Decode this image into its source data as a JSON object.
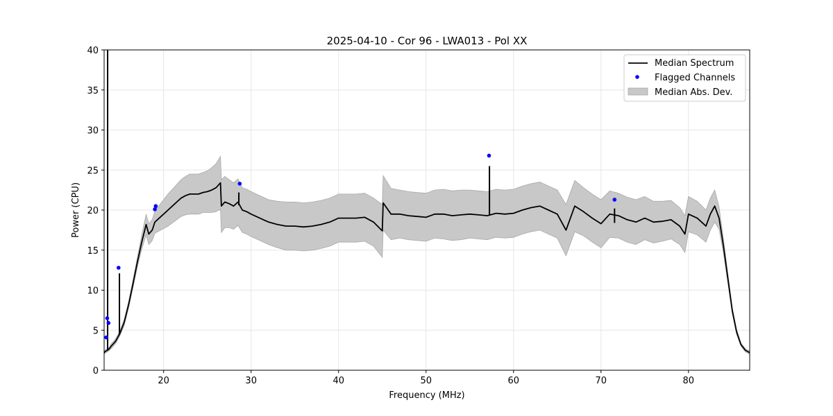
{
  "chart_data": {
    "type": "line",
    "title": "2025-04-10 - Cor 96 - LWA013 - Pol XX",
    "xlabel": "Frequency (MHz)",
    "ylabel": "Power (CPU)",
    "xlim": [
      13.2,
      87.0
    ],
    "ylim": [
      0,
      40
    ],
    "xticks": [
      20,
      30,
      40,
      50,
      60,
      70,
      80
    ],
    "yticks": [
      0,
      5,
      10,
      15,
      20,
      25,
      30,
      35,
      40
    ],
    "grid": true,
    "legend_position": "top-right",
    "legend": [
      {
        "label": "Median Spectrum",
        "kind": "line",
        "color": "#000000"
      },
      {
        "label": "Flagged Channels",
        "kind": "point",
        "color": "#0000ff"
      },
      {
        "label": "Median Abs. Dev.",
        "kind": "band",
        "color": "#c8c8c8"
      }
    ],
    "median_spectrum": {
      "color": "#000000",
      "x": [
        13.2,
        13.4,
        13.6,
        13.8,
        14.0,
        14.5,
        15.0,
        15.5,
        16.0,
        16.5,
        17.0,
        17.5,
        18.0,
        18.3,
        18.7,
        19.0,
        19.5,
        20.0,
        20.5,
        21.0,
        21.5,
        22.0,
        22.5,
        23.0,
        23.5,
        24.0,
        24.5,
        25.0,
        25.5,
        26.0,
        26.5,
        26.6,
        27.0,
        27.5,
        28.0,
        28.5,
        29.0,
        29.5,
        30.0,
        31.0,
        32.0,
        33.0,
        34.0,
        35.0,
        36.0,
        37.0,
        38.0,
        39.0,
        40.0,
        41.0,
        42.0,
        43.0,
        44.0,
        45.0,
        45.1,
        46.0,
        47.0,
        48.0,
        49.0,
        50.0,
        51.0,
        52.0,
        53.0,
        54.0,
        55.0,
        56.0,
        57.0,
        58.0,
        59.0,
        60.0,
        61.0,
        62.0,
        63.0,
        64.0,
        65.0,
        66.0,
        67.0,
        68.0,
        69.0,
        70.0,
        71.0,
        72.0,
        73.0,
        74.0,
        75.0,
        76.0,
        77.0,
        78.0,
        79.0,
        79.6,
        80.0,
        81.0,
        82.0,
        82.5,
        83.0,
        83.5,
        84.0,
        84.5,
        85.0,
        85.5,
        86.0,
        86.5,
        87.0
      ],
      "y": [
        2.2,
        2.4,
        2.5,
        2.7,
        3.0,
        3.6,
        4.6,
        6.0,
        8.2,
        10.8,
        13.5,
        16.0,
        18.2,
        17.0,
        17.5,
        18.5,
        19.0,
        19.5,
        20.0,
        20.5,
        21.0,
        21.5,
        21.8,
        22.0,
        22.0,
        22.0,
        22.2,
        22.3,
        22.5,
        22.8,
        23.4,
        20.5,
        21.0,
        20.8,
        20.5,
        21.0,
        20.0,
        19.8,
        19.5,
        19.0,
        18.5,
        18.2,
        18.0,
        18.0,
        17.9,
        18.0,
        18.2,
        18.5,
        19.0,
        19.0,
        19.0,
        19.1,
        18.5,
        17.4,
        20.9,
        19.5,
        19.5,
        19.3,
        19.2,
        19.1,
        19.5,
        19.5,
        19.3,
        19.4,
        19.5,
        19.4,
        19.3,
        19.6,
        19.5,
        19.6,
        20.0,
        20.3,
        20.5,
        20.0,
        19.5,
        17.5,
        20.5,
        19.8,
        19.0,
        18.3,
        19.5,
        19.3,
        18.8,
        18.5,
        19.0,
        18.5,
        18.6,
        18.8,
        18.0,
        17.0,
        19.5,
        19.0,
        18.0,
        19.5,
        20.5,
        19.0,
        15.5,
        11.5,
        7.5,
        4.8,
        3.2,
        2.5,
        2.2
      ],
      "mad": [
        0.2,
        0.2,
        0.2,
        0.2,
        0.3,
        0.3,
        0.3,
        0.4,
        0.4,
        0.5,
        0.6,
        0.9,
        1.3,
        1.3,
        1.3,
        1.4,
        1.6,
        1.8,
        2.0,
        2.1,
        2.2,
        2.3,
        2.4,
        2.5,
        2.5,
        2.5,
        2.5,
        2.6,
        2.8,
        3.0,
        3.3,
        3.3,
        3.2,
        3.0,
        2.9,
        2.9,
        2.8,
        2.8,
        2.8,
        2.8,
        2.8,
        2.9,
        3.0,
        3.0,
        3.0,
        3.0,
        3.0,
        3.0,
        3.0,
        3.0,
        3.0,
        3.0,
        3.0,
        3.3,
        3.4,
        3.2,
        3.0,
        3.0,
        3.0,
        3.0,
        3.0,
        3.1,
        3.1,
        3.1,
        3.0,
        3.0,
        3.0,
        3.0,
        3.0,
        3.0,
        3.0,
        3.0,
        3.0,
        3.0,
        3.0,
        3.2,
        3.2,
        3.0,
        3.0,
        3.0,
        2.9,
        2.8,
        2.8,
        2.8,
        2.7,
        2.6,
        2.5,
        2.4,
        2.3,
        2.3,
        2.2,
        2.1,
        2.0,
        2.0,
        2.0,
        1.4,
        0.9,
        0.6,
        0.4,
        0.3,
        0.2,
        0.2,
        0.2
      ],
      "spikes": [
        {
          "x": 13.6,
          "peak": 40.0,
          "base": 2.5
        },
        {
          "x": 14.95,
          "peak": 12.1,
          "base": 4.4
        },
        {
          "x": 28.6,
          "peak": 22.2,
          "base": 20.6
        },
        {
          "x": 57.25,
          "peak": 25.5,
          "base": 19.4
        },
        {
          "x": 71.55,
          "peak": 20.2,
          "base": 18.4
        }
      ]
    },
    "flagged_channels": {
      "color": "#0000ff",
      "x": [
        13.45,
        13.55,
        13.7,
        14.85,
        19.0,
        19.1,
        28.7,
        57.2,
        71.55
      ],
      "y": [
        4.1,
        6.5,
        5.9,
        12.8,
        20.1,
        20.5,
        23.3,
        26.8,
        21.3
      ]
    }
  }
}
